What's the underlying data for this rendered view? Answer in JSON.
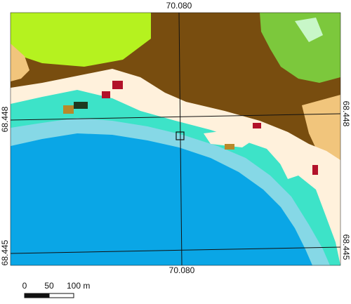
{
  "graticule": {
    "top": "70.080",
    "bottom": "70.080",
    "left": [
      "68.448",
      "68.445"
    ],
    "right": [
      "68.448",
      "68.445"
    ]
  },
  "scale_bar": {
    "labels": [
      "0",
      "50",
      "100 m"
    ]
  }
}
